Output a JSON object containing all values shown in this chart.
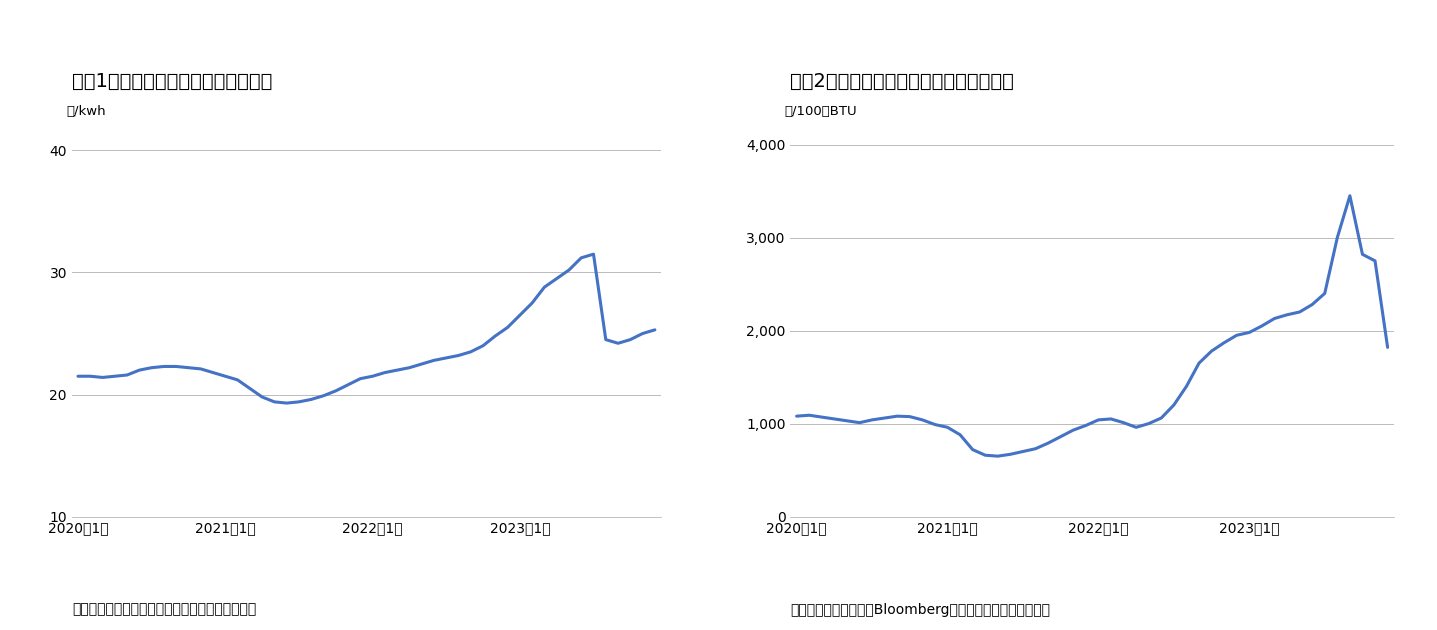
{
  "chart1": {
    "title": "図袅1　電力価格（低圧電灯）の推移",
    "ylabel": "円/kwh",
    "yticks": [
      10,
      20,
      30,
      40
    ],
    "ylim": [
      10,
      42
    ],
    "source": "（資料）　経済産業省のデータをもとに筆者作成",
    "xtick_labels": [
      "2020年1月",
      "2021年1月",
      "2022年1月",
      "2023年1月"
    ],
    "data": [
      21.5,
      21.5,
      21.4,
      21.5,
      21.6,
      22.0,
      22.2,
      22.3,
      22.3,
      22.2,
      22.1,
      21.8,
      21.5,
      21.2,
      20.5,
      19.8,
      19.4,
      19.3,
      19.4,
      19.6,
      19.9,
      20.3,
      20.8,
      21.3,
      21.5,
      21.8,
      22.0,
      22.2,
      22.5,
      22.8,
      23.0,
      23.2,
      23.5,
      24.0,
      24.8,
      25.5,
      26.5,
      27.5,
      28.8,
      29.5,
      30.2,
      31.2,
      31.5,
      24.5,
      24.2,
      24.5,
      25.0,
      25.3
    ]
  },
  "chart2": {
    "title": "図袅2　天然ガス（日本輸入価格）の推移",
    "ylabel": "円/100万BTU",
    "yticks": [
      0,
      1000,
      2000,
      3000,
      4000
    ],
    "ylim": [
      0,
      4200
    ],
    "source": "（資料）　世界銀行、Bloombergのデータをもとに筆者作成",
    "xtick_labels": [
      "2020年1月",
      "2021年1月",
      "2022年1月",
      "2023年1月"
    ],
    "data": [
      1080,
      1090,
      1070,
      1050,
      1030,
      1010,
      1040,
      1060,
      1080,
      1075,
      1040,
      990,
      960,
      880,
      720,
      660,
      650,
      670,
      700,
      730,
      790,
      860,
      930,
      980,
      1040,
      1050,
      1010,
      960,
      1000,
      1060,
      1200,
      1400,
      1650,
      1780,
      1870,
      1950,
      1980,
      2050,
      2130,
      2170,
      2200,
      2280,
      2400,
      3000,
      3450,
      2820,
      2750,
      1820
    ]
  },
  "line_color": "#4472C4",
  "line_width": 2.2,
  "grid_color": "#BBBBBB",
  "bg_color": "#FFFFFF",
  "title_fontsize": 14,
  "label_fontsize": 9.5,
  "tick_fontsize": 10,
  "source_fontsize": 10
}
